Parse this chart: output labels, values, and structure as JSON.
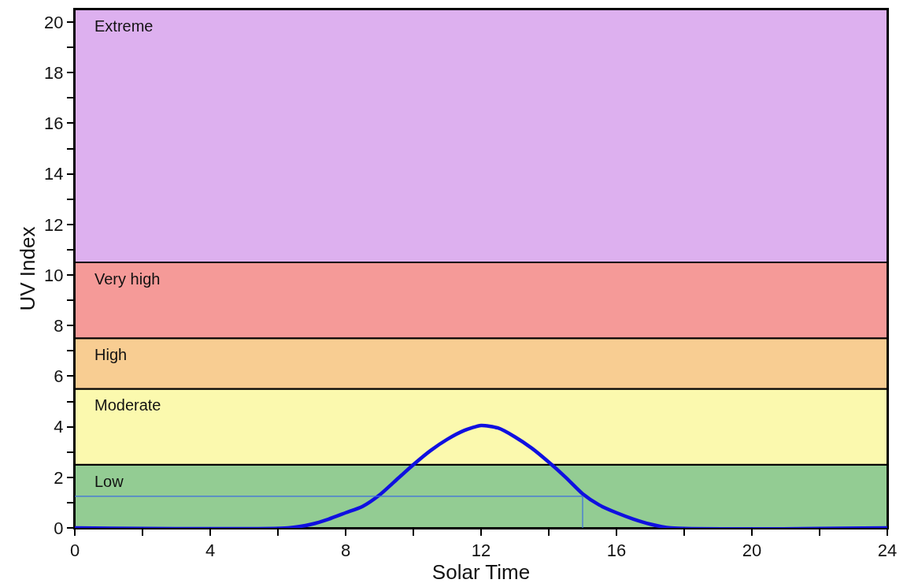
{
  "chart_data": {
    "type": "line",
    "xlabel": "Solar Time",
    "ylabel": "UV Index",
    "xlim": [
      0,
      24
    ],
    "ylim": [
      0,
      20.5
    ],
    "xticks": [
      0,
      {
        "value": 2,
        "label": null
      },
      4,
      {
        "value": 6,
        "label": null
      },
      8,
      {
        "value": 10,
        "label": null
      },
      12,
      {
        "value": 14,
        "label": null
      },
      16,
      {
        "value": 18,
        "label": null
      },
      20,
      {
        "value": 22,
        "label": null
      },
      24
    ],
    "yticks": [
      0,
      {
        "value": 1,
        "label": null
      },
      2,
      {
        "value": 3,
        "label": null
      },
      4,
      {
        "value": 5,
        "label": null
      },
      6,
      {
        "value": 7,
        "label": null
      },
      8,
      {
        "value": 9,
        "label": null
      },
      10,
      {
        "value": 11,
        "label": null
      },
      12,
      {
        "value": 13,
        "label": null
      },
      14,
      {
        "value": 15,
        "label": null
      },
      16,
      {
        "value": 17,
        "label": null
      },
      18,
      {
        "value": 19,
        "label": null
      },
      20
    ],
    "bands": [
      {
        "axis": "y",
        "from": 0,
        "to": 2.5,
        "label": "Low",
        "color": "#93cc93"
      },
      {
        "axis": "y",
        "from": 2.5,
        "to": 5.5,
        "label": "Moderate",
        "color": "#fbf9ae"
      },
      {
        "axis": "y",
        "from": 5.5,
        "to": 7.5,
        "label": "High",
        "color": "#f8cd92"
      },
      {
        "axis": "y",
        "from": 7.5,
        "to": 10.5,
        "label": "Very high",
        "color": "#f59a98"
      },
      {
        "axis": "y",
        "from": 10.5,
        "to": 20.5,
        "label": "Extreme",
        "color": "#ddb0ef"
      }
    ],
    "series": [
      {
        "color": "#1010e0",
        "x": [
          0,
          6.3,
          7,
          7.5,
          8,
          8.5,
          9,
          9.5,
          10,
          10.5,
          11,
          11.5,
          12,
          12.5,
          13,
          13.5,
          14,
          14.5,
          15,
          15.5,
          16,
          16.5,
          17,
          17.6,
          24
        ],
        "values": [
          0,
          0,
          0.15,
          0.35,
          0.6,
          0.85,
          1.3,
          1.9,
          2.5,
          3.05,
          3.5,
          3.85,
          4.05,
          3.95,
          3.6,
          3.15,
          2.6,
          2.0,
          1.35,
          0.9,
          0.6,
          0.35,
          0.15,
          0,
          0
        ]
      },
      {
        "color": "#3d6ee0",
        "line_style": "solid",
        "x": [
          0,
          15,
          15
        ],
        "values": [
          1.25,
          1.25,
          0
        ]
      }
    ]
  }
}
